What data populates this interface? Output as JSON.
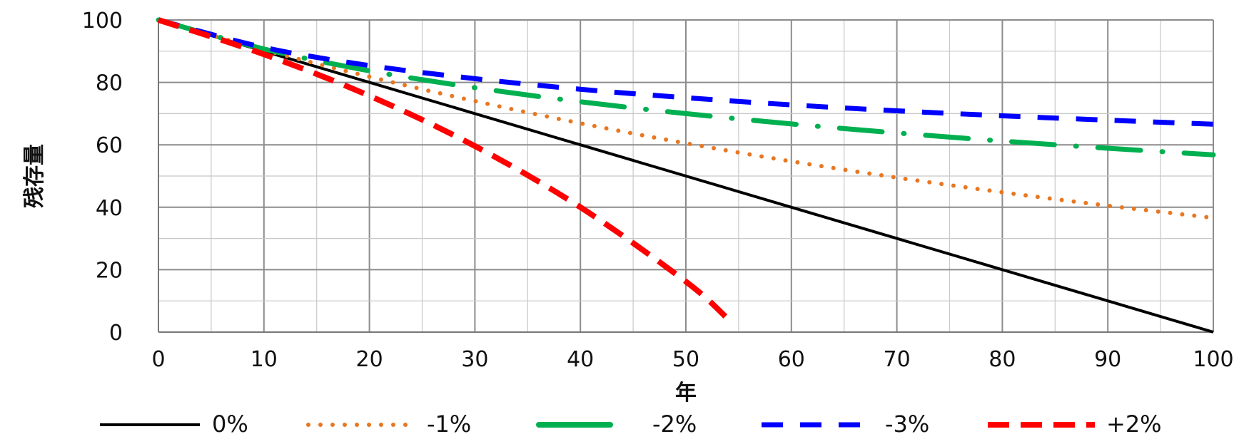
{
  "chart_data": {
    "type": "line",
    "title": "",
    "xlabel": "年",
    "ylabel": "残存量",
    "xlim": [
      0,
      100
    ],
    "ylim": [
      0,
      100
    ],
    "grid": true,
    "legend_position": "bottom",
    "x_ticks": [
      "0",
      "10",
      "20",
      "30",
      "40",
      "50",
      "60",
      "70",
      "80",
      "90",
      "100"
    ],
    "y_ticks": [
      "0",
      "20",
      "40",
      "60",
      "80",
      "100"
    ],
    "series": [
      {
        "name": "0%",
        "color": "#000000",
        "style": "solid",
        "x": [
          0,
          10,
          20,
          30,
          40,
          50,
          60,
          70,
          80,
          90,
          100
        ],
        "y": [
          100,
          90,
          80,
          70,
          60,
          50,
          40,
          30,
          20,
          10,
          0
        ]
      },
      {
        "name": "-1%",
        "color": "#e87722",
        "style": "dotted",
        "x": [
          0,
          10,
          20,
          30,
          40,
          50,
          60,
          70,
          80,
          90,
          100
        ],
        "y": [
          100,
          90.4,
          81.8,
          74.0,
          66.9,
          60.5,
          54.7,
          49.5,
          44.8,
          40.5,
          36.6
        ]
      },
      {
        "name": "-2%",
        "color": "#00b050",
        "style": "longdash-dot",
        "x": [
          0,
          10,
          20,
          30,
          40,
          50,
          60,
          70,
          80,
          90,
          100
        ],
        "y": [
          100,
          90.7,
          83.7,
          78.3,
          73.8,
          70.0,
          66.7,
          63.8,
          61.2,
          58.9,
          56.8
        ]
      },
      {
        "name": "-3%",
        "color": "#0000ff",
        "style": "dashed",
        "x": [
          0,
          10,
          20,
          30,
          40,
          50,
          60,
          70,
          80,
          90,
          100
        ],
        "y": [
          100,
          91.2,
          85.4,
          81.2,
          77.8,
          75.1,
          72.8,
          70.9,
          69.3,
          67.9,
          66.6
        ]
      },
      {
        "name": "+2%",
        "color": "#ff0000",
        "style": "bold-dashed",
        "x": [
          0,
          10,
          20,
          30,
          40,
          50,
          54
        ],
        "y": [
          100,
          89.0,
          75.7,
          59.6,
          40.0,
          16.2,
          4.2
        ]
      }
    ]
  }
}
